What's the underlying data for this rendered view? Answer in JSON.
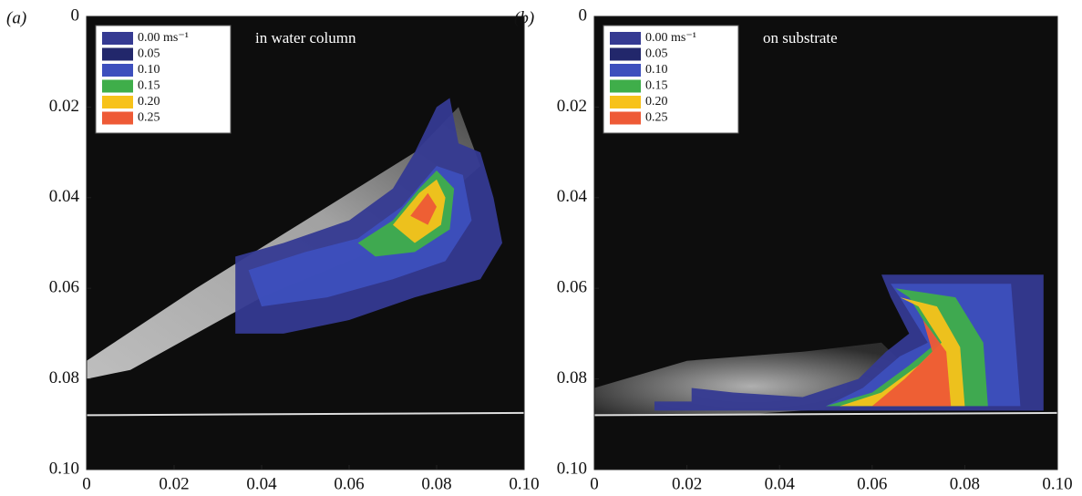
{
  "chart_data": [
    {
      "type": "contour",
      "panel_label": "(a)",
      "annotation": "in water column",
      "legend": [
        {
          "label": "0.00 ms⁻¹",
          "color": "#353a92"
        },
        {
          "label": "0.05",
          "color": "#22276b"
        },
        {
          "label": "0.10",
          "color": "#3d4fbd"
        },
        {
          "label": "0.15",
          "color": "#3fae4a"
        },
        {
          "label": "0.20",
          "color": "#f7c21a"
        },
        {
          "label": "0.25",
          "color": "#ee5a36"
        }
      ],
      "xlim": [
        0,
        0.1
      ],
      "xticks": [
        0,
        0.02,
        0.04,
        0.06,
        0.08,
        {
          "value": 0.1,
          "label": "0.10"
        }
      ],
      "ylim": [
        0,
        0.1
      ],
      "yticks": [
        0,
        0.02,
        0.04,
        0.06,
        0.08,
        {
          "value": 0.1,
          "label": "0.10"
        }
      ]
    },
    {
      "type": "contour",
      "panel_label": "(b)",
      "annotation": "on substrate",
      "legend": [
        {
          "label": "0.00 ms⁻¹",
          "color": "#353a92"
        },
        {
          "label": "0.05",
          "color": "#22276b"
        },
        {
          "label": "0.10",
          "color": "#3d4fbd"
        },
        {
          "label": "0.15",
          "color": "#3fae4a"
        },
        {
          "label": "0.20",
          "color": "#f7c21a"
        },
        {
          "label": "0.25",
          "color": "#ee5a36"
        }
      ],
      "xlim": [
        0,
        0.1
      ],
      "xticks": [
        0,
        0.02,
        0.04,
        0.06,
        0.08,
        {
          "value": 0.1,
          "label": "0.10"
        }
      ],
      "ylim": [
        0,
        0.1
      ],
      "yticks": [
        0,
        0.02,
        0.04,
        0.06,
        0.08,
        {
          "value": 0.1,
          "label": "0.10"
        }
      ]
    }
  ]
}
